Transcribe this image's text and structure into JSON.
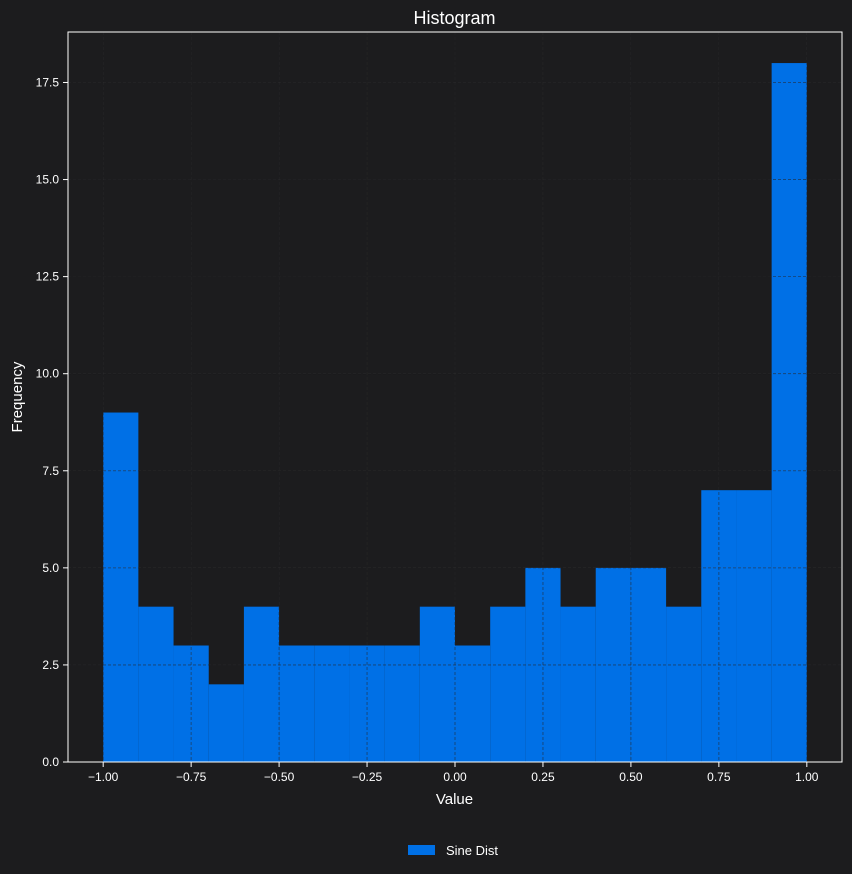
{
  "chart_data": {
    "type": "bar",
    "title": "Histogram",
    "xlabel": "Value",
    "ylabel": "Frequency",
    "bin_edges": [
      -1.0,
      -0.9,
      -0.8,
      -0.7,
      -0.6,
      -0.5,
      -0.4,
      -0.3,
      -0.2,
      -0.1,
      0.0,
      0.1,
      0.2,
      0.3,
      0.4,
      0.5,
      0.6,
      0.7,
      0.8,
      0.9,
      1.0
    ],
    "series": [
      {
        "name": "Sine Dist",
        "values": [
          9,
          4,
          3,
          2,
          4,
          3,
          3,
          3,
          3,
          4,
          3,
          4,
          5,
          4,
          5,
          5,
          4,
          7,
          7,
          18
        ]
      }
    ],
    "xlim": [
      -1.1,
      1.1
    ],
    "ylim": [
      0,
      18.8
    ],
    "xticks": [
      -1.0,
      -0.75,
      -0.5,
      -0.25,
      0.0,
      0.25,
      0.5,
      0.75,
      1.0
    ],
    "xtick_labels": [
      "−1.00",
      "−0.75",
      "−0.50",
      "−0.25",
      "0.00",
      "0.25",
      "0.50",
      "0.75",
      "1.00"
    ],
    "yticks": [
      0,
      2.5,
      5,
      7.5,
      10,
      12.5,
      15,
      17.5
    ],
    "ytick_labels": [
      "0.0",
      "2.5",
      "5.0",
      "7.5",
      "10.0",
      "12.5",
      "15.0",
      "17.5"
    ],
    "grid": true,
    "legend_position": "bottom-center",
    "colors": {
      "background": "#1c1c1e",
      "bar": "#0070e6",
      "axis": "#ffffff",
      "grid": "#3a3a3c",
      "text": "#ffffff"
    }
  }
}
